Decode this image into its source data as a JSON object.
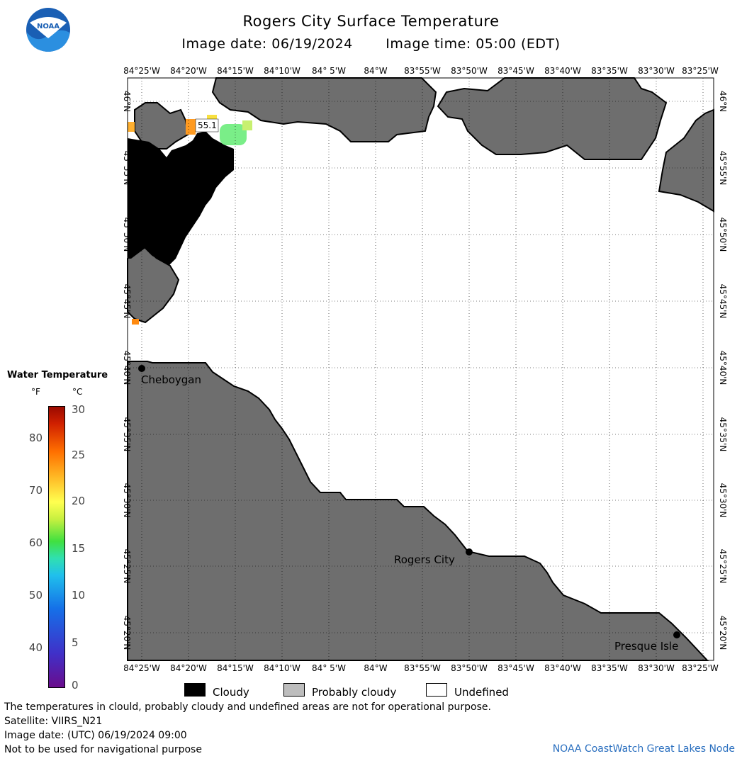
{
  "header": {
    "title": "Rogers City Surface Temperature",
    "image_date": "Image date: 06/19/2024",
    "image_time": "Image time: 05:00 (EDT)",
    "logo_text": "NOAA"
  },
  "map": {
    "lon_labels": [
      "84°25'W",
      "84°20'W",
      "84°15'W",
      "84°10'W",
      "84° 5'W",
      "84°W",
      "83°55'W",
      "83°50'W",
      "83°45'W",
      "83°40'W",
      "83°35'W",
      "83°30'W",
      "83°25'W"
    ],
    "lat_labels": [
      "46°N",
      "45°55'N",
      "45°50'N",
      "45°45'N",
      "45°40'N",
      "45°35'N",
      "45°30'N",
      "45°25'N",
      "45°20'N"
    ],
    "cities": [
      {
        "name": "Cheboygan"
      },
      {
        "name": "Rogers City"
      },
      {
        "name": "Presque Isle"
      }
    ],
    "sample_value": "55.1",
    "colors": {
      "land": "#6e6e6e",
      "cloud": "#000000",
      "water_undefined": "#ffffff"
    }
  },
  "legend": {
    "title": "Water Temperature",
    "unit_f": "°F",
    "unit_c": "°C",
    "f_ticks": [
      "80",
      "70",
      "60",
      "50",
      "40"
    ],
    "c_ticks": [
      "30",
      "25",
      "20",
      "15",
      "10",
      "5",
      "0"
    ]
  },
  "key": {
    "cloudy": "Cloudy",
    "probably_cloudy": "Probably cloudy",
    "undefined": "Undefined"
  },
  "notes": {
    "disclaimer": "The temperatures in clould, probably cloudy and undefined areas are not for operational purpose.",
    "satellite": "Satellite: VIIRS_N21",
    "utc_date": "Image date: (UTC) 06/19/2024  09:00",
    "navigation": "Not to be used for navigational purpose",
    "credit": "NOAA CoastWatch Great Lakes Node"
  }
}
